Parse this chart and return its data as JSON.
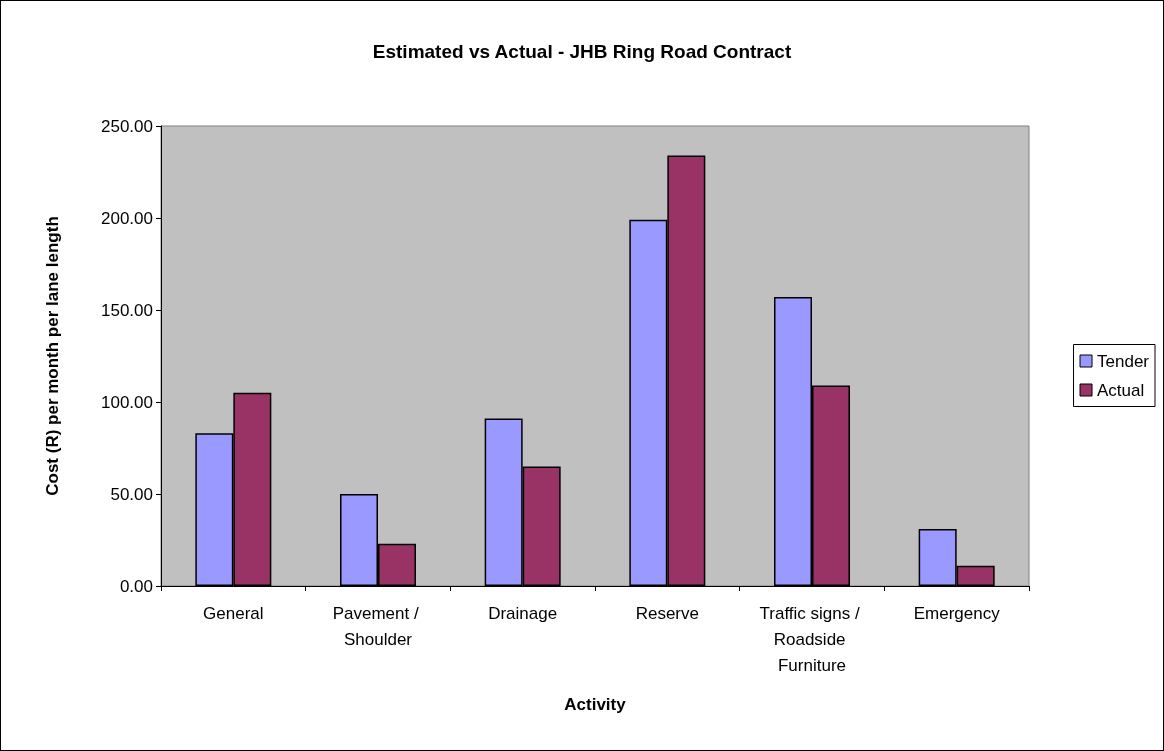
{
  "chart_data": {
    "type": "bar",
    "title": "Estimated vs Actual - JHB Ring Road Contract",
    "xlabel": "Activity",
    "ylabel": "Cost (R) per month per lane length",
    "categories": [
      "General",
      "Pavement / Shoulder",
      "Drainage",
      "Reserve",
      "Traffic signs / Roadside Furniture",
      "Emergency"
    ],
    "series": [
      {
        "name": "Tender",
        "color": "#9999ff",
        "values": [
          83,
          50,
          91,
          199,
          157,
          31
        ]
      },
      {
        "name": "Actual",
        "color": "#993366",
        "values": [
          105,
          23,
          65,
          234,
          109,
          11
        ]
      }
    ],
    "ylim": [
      0,
      250
    ],
    "yticks": [
      {
        "value": 0,
        "label": "0.00"
      },
      {
        "value": 50,
        "label": "50.00"
      },
      {
        "value": 100,
        "label": "100.00"
      },
      {
        "value": 150,
        "label": "150.00"
      },
      {
        "value": 200,
        "label": "200.00"
      },
      {
        "value": 250,
        "label": "250.00"
      }
    ],
    "grid": false,
    "legend": "right"
  }
}
